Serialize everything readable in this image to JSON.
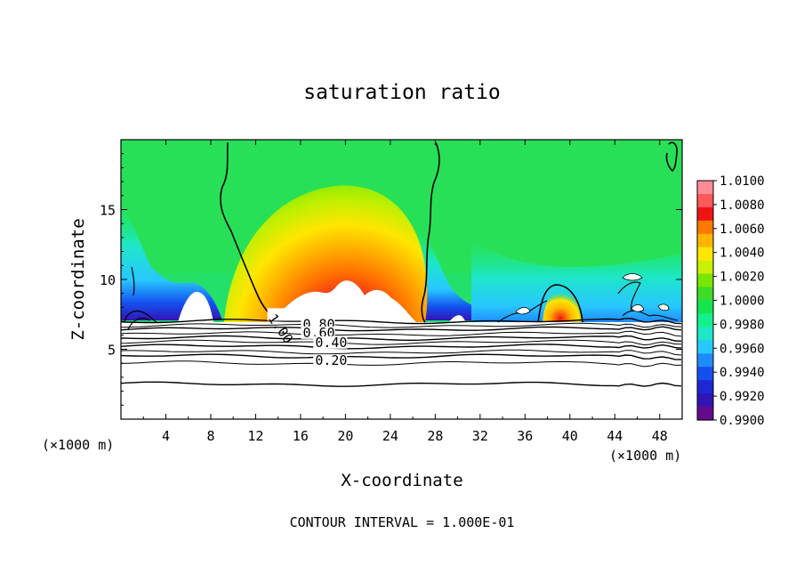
{
  "chart_data": {
    "type": "heatmap",
    "title": "saturation ratio",
    "xlabel": "X-coordinate",
    "ylabel": "Z-coordinate",
    "x_unit_left": "(×1000 m)",
    "x_unit_right": "(×1000 m)",
    "footer": "CONTOUR INTERVAL = 1.000E-01",
    "xlim": [
      0,
      50
    ],
    "ylim": [
      0,
      20
    ],
    "xticks": [
      4,
      8,
      12,
      16,
      20,
      24,
      28,
      32,
      36,
      40,
      44,
      48
    ],
    "yticks": [
      5,
      10,
      15
    ],
    "colorbar": {
      "levels": [
        "1.0100",
        "1.0080",
        "1.0060",
        "1.0040",
        "1.0020",
        "1.0000",
        "0.9980",
        "0.9960",
        "0.9940",
        "0.9920",
        "0.9900"
      ],
      "colors": [
        "#ff8c96",
        "#ff5a5a",
        "#f01414",
        "#ff7800",
        "#ffb400",
        "#ffe600",
        "#c8f000",
        "#78e600",
        "#3cdc28",
        "#14e650",
        "#14f08c",
        "#1ee6c8",
        "#28c8ff",
        "#1e8cff",
        "#1450f0",
        "#1e28d2",
        "#3214b4",
        "#640a8c"
      ]
    },
    "contour_labels": [
      {
        "text": "1.00",
        "x": 13.2,
        "z": 7.3
      },
      {
        "text": "0.80",
        "x": 16.2,
        "z": 6.6
      },
      {
        "text": "0.60",
        "x": 16.2,
        "z": 6.0
      },
      {
        "text": "0.40",
        "x": 17.3,
        "z": 5.3
      },
      {
        "text": "0.20",
        "x": 17.3,
        "z": 4.0
      }
    ],
    "contour_lines_z": [
      7.0,
      6.7,
      6.45,
      6.1,
      5.8,
      5.5,
      5.2,
      4.8,
      4.5,
      4.0,
      2.5
    ]
  }
}
